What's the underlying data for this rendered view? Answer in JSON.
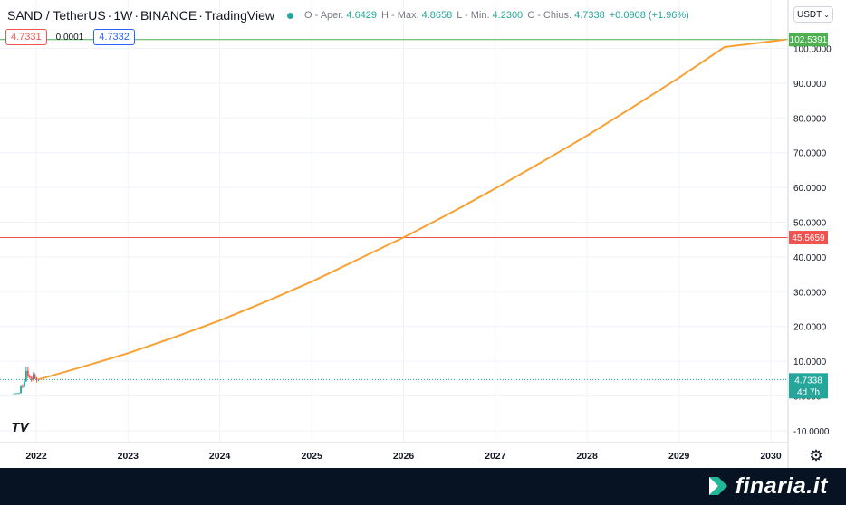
{
  "legend": {
    "symbol": "SAND / TetherUS",
    "interval": "1W",
    "exchange": "BINANCE",
    "platform": "TradingView",
    "open_label": "O - Aper.",
    "open_value": "4.6429",
    "high_label": "H - Max.",
    "high_value": "4.8658",
    "low_label": "L - Min.",
    "low_value": "4.2300",
    "close_label": "C - Chius.",
    "close_value": "4.7338",
    "change": "+0.0908 (+1.96%)"
  },
  "quotes": {
    "sell": "4.7331",
    "spread": "0.0001",
    "buy": "4.7332"
  },
  "currency_selector": "USDT",
  "gear_icon": "gear-icon",
  "brand": {
    "name": "finaria.it",
    "icon": "finaria-chevron-logo"
  },
  "colors": {
    "curve": "#f7a134",
    "upper_line": "#4caf50",
    "lower_line": "#ef5350",
    "price_badge": "#26a69a",
    "footer_bg": "#071323",
    "candle_up": "#26a69a",
    "candle_down": "#ef5350"
  },
  "chart_data": {
    "type": "line",
    "x_axis": {
      "type": "date",
      "tick_labels": [
        "2022",
        "2023",
        "2024",
        "2025",
        "2026",
        "2027",
        "2028",
        "2029",
        "2030"
      ]
    },
    "y_axis": {
      "range": [
        -12,
        103
      ],
      "tick_labels": [
        "-10.0000",
        "0.0000",
        "10.0000",
        "20.0000",
        "30.0000",
        "40.0000",
        "50.0000",
        "60.0000",
        "70.0000",
        "80.0000",
        "90.0000",
        "100.0000"
      ],
      "tick_values": [
        -10,
        0,
        10,
        20,
        30,
        40,
        50,
        60,
        70,
        80,
        90,
        100
      ]
    },
    "grid": true,
    "series": [
      {
        "style": "line",
        "color": "#f7a134",
        "points": [
          {
            "x": "2022-01-10",
            "y": 4.73
          },
          {
            "x": "2022-07-01",
            "y": 8.3
          },
          {
            "x": "2023-01-01",
            "y": 12.3
          },
          {
            "x": "2023-07-01",
            "y": 16.8
          },
          {
            "x": "2024-01-01",
            "y": 21.7
          },
          {
            "x": "2024-07-01",
            "y": 27.1
          },
          {
            "x": "2025-01-01",
            "y": 32.9
          },
          {
            "x": "2025-07-01",
            "y": 39.2
          },
          {
            "x": "2026-01-01",
            "y": 45.6
          },
          {
            "x": "2026-07-01",
            "y": 52.4
          },
          {
            "x": "2027-01-01",
            "y": 59.7
          },
          {
            "x": "2027-07-01",
            "y": 67.1
          },
          {
            "x": "2028-01-01",
            "y": 74.9
          },
          {
            "x": "2028-07-01",
            "y": 83.1
          },
          {
            "x": "2029-01-01",
            "y": 91.6
          },
          {
            "x": "2029-07-01",
            "y": 100.4
          },
          {
            "x": "2030-03-01",
            "y": 102.54
          }
        ]
      }
    ],
    "candles": [
      {
        "x": "2021-10-04",
        "o": 0.7,
        "h": 0.85,
        "l": 0.6,
        "c": 0.72
      },
      {
        "x": "2021-10-11",
        "o": 0.72,
        "h": 0.8,
        "l": 0.65,
        "c": 0.74
      },
      {
        "x": "2021-10-18",
        "o": 0.74,
        "h": 0.85,
        "l": 0.68,
        "c": 0.78
      },
      {
        "x": "2021-10-25",
        "o": 0.78,
        "h": 1.0,
        "l": 0.7,
        "c": 0.8
      },
      {
        "x": "2021-11-01",
        "o": 0.8,
        "h": 3.2,
        "l": 0.78,
        "c": 2.9
      },
      {
        "x": "2021-11-08",
        "o": 2.9,
        "h": 3.4,
        "l": 2.2,
        "c": 2.6
      },
      {
        "x": "2021-11-15",
        "o": 2.6,
        "h": 4.5,
        "l": 2.4,
        "c": 4.2
      },
      {
        "x": "2021-11-22",
        "o": 4.2,
        "h": 8.5,
        "l": 4.0,
        "c": 7.2
      },
      {
        "x": "2021-11-29",
        "o": 7.2,
        "h": 8.4,
        "l": 5.1,
        "c": 5.6
      },
      {
        "x": "2021-12-06",
        "o": 5.6,
        "h": 6.2,
        "l": 4.9,
        "c": 5.3
      },
      {
        "x": "2021-12-13",
        "o": 5.3,
        "h": 5.8,
        "l": 4.1,
        "c": 4.6
      },
      {
        "x": "2021-12-20",
        "o": 4.6,
        "h": 6.8,
        "l": 4.4,
        "c": 6.1
      },
      {
        "x": "2021-12-27",
        "o": 6.1,
        "h": 6.5,
        "l": 4.8,
        "c": 5.0
      },
      {
        "x": "2022-01-03",
        "o": 5.0,
        "h": 5.4,
        "l": 3.9,
        "c": 4.64
      },
      {
        "x": "2022-01-10",
        "o": 4.6429,
        "h": 4.8658,
        "l": 4.23,
        "c": 4.7338
      }
    ],
    "horizontal_lines": [
      {
        "value": 102.5391,
        "label": "102.5391",
        "color": "#4caf50"
      },
      {
        "value": 45.5659,
        "label": "45.5659",
        "color": "#ef5350"
      },
      {
        "value": 4.7338,
        "label": "4.7338",
        "sublabel": "4d 7h",
        "color": "#26a69a",
        "style": "dotted"
      }
    ]
  }
}
